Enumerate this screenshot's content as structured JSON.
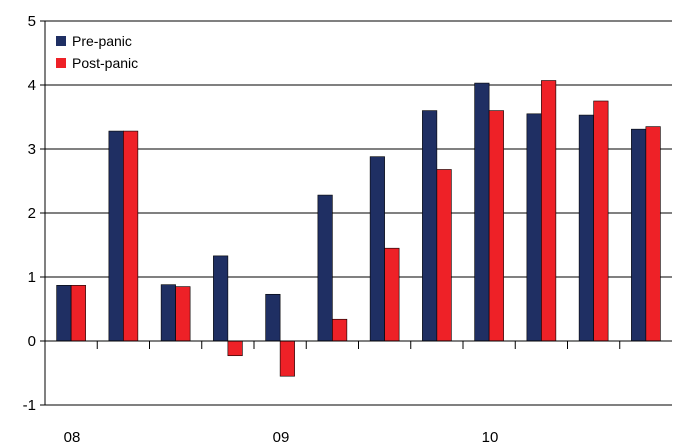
{
  "chart_data": {
    "type": "bar",
    "title": "",
    "xlabel": "",
    "ylabel": "",
    "ylim": [
      -1,
      5
    ],
    "yticks": [
      -1,
      0,
      1,
      2,
      3,
      4,
      5
    ],
    "grid": true,
    "legend_position": "top-left",
    "x_group_labels": [
      "08",
      "09",
      "10"
    ],
    "categories": [
      "",
      "",
      "",
      "",
      "",
      "",
      "",
      "",
      "",
      "",
      "",
      ""
    ],
    "series": [
      {
        "name": "Pre-panic",
        "color": "#1f2f63",
        "values": [
          0.87,
          3.28,
          0.88,
          1.33,
          0.73,
          2.28,
          2.88,
          3.6,
          4.03,
          3.55,
          3.53,
          3.31
        ]
      },
      {
        "name": "Post-panic",
        "color": "#ee2127",
        "values": [
          0.87,
          3.28,
          0.85,
          -0.23,
          -0.55,
          0.34,
          1.45,
          2.68,
          3.6,
          4.07,
          3.75,
          3.35
        ]
      }
    ]
  }
}
